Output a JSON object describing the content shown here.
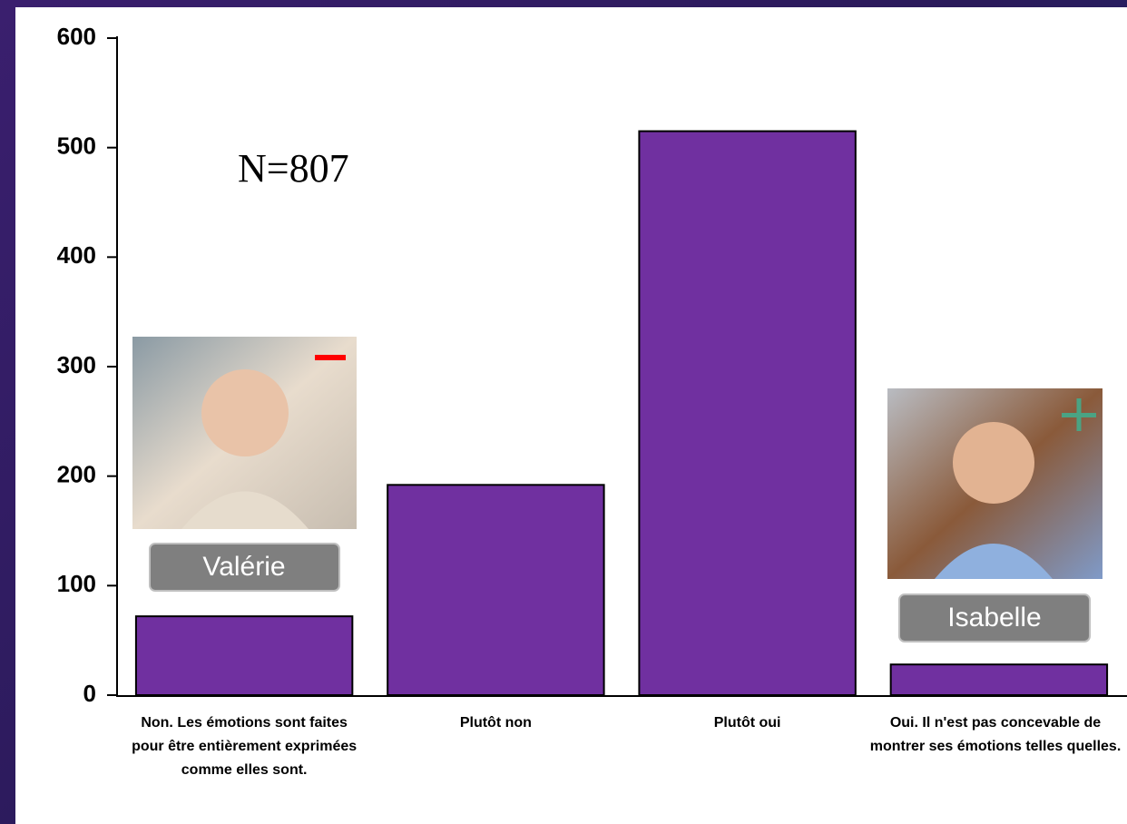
{
  "chart_data": {
    "type": "bar",
    "categories": [
      "Non. Les émotions sont faites pour être entièrement exprimées comme elles sont.",
      "Plutôt non",
      "Plutôt oui",
      "Oui. Il n'est pas concevable de montrer ses émotions telles quelles."
    ],
    "values": [
      72,
      192,
      515,
      28
    ],
    "color": "#7030a0",
    "ylim": [
      0,
      600
    ],
    "yticks": [
      0,
      100,
      200,
      300,
      400,
      500,
      600
    ],
    "grid": false,
    "annotation": "N=807",
    "persons": [
      "Valérie",
      "Isabelle"
    ]
  }
}
